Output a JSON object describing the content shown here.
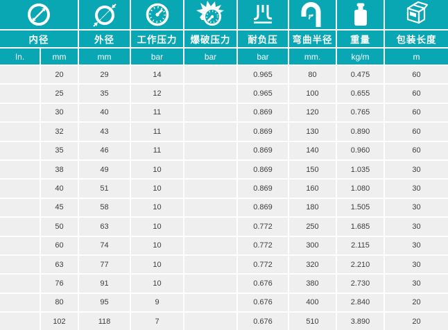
{
  "colors": {
    "header_teal": "#09a6b4",
    "row_background": "#efefef",
    "grid_lines": "#ffffff",
    "data_text": "#3c3c3c",
    "header_text": "#ffffff"
  },
  "header": {
    "columns": [
      {
        "label": "内径",
        "icon": "inner-diameter-icon"
      },
      {
        "label": "外径",
        "icon": "outer-diameter-icon"
      },
      {
        "label": "工作压力",
        "icon": "pressure-gauge-icon"
      },
      {
        "label": "爆破压力",
        "icon": "burst-gauge-icon"
      },
      {
        "label": "耐负压",
        "icon": "vacuum-icon"
      },
      {
        "label": "弯曲半径",
        "icon": "bend-radius-icon"
      },
      {
        "label": "重量",
        "icon": "weight-icon"
      },
      {
        "label": "包装长度",
        "icon": "package-icon"
      }
    ],
    "unit_row": [
      "In.",
      "mm",
      "mm",
      "bar",
      "bar",
      "bar",
      "mm.",
      "kg/m",
      "m"
    ]
  },
  "chart_data": {
    "type": "table",
    "columns": [
      "内径 In.",
      "内径 mm",
      "外径 mm",
      "工作压力 bar",
      "爆破压力 bar",
      "耐负压 bar",
      "弯曲半径 mm.",
      "重量 kg/m",
      "包装长度 m"
    ],
    "rows": [
      [
        "",
        "20",
        "29",
        "14",
        "",
        "0.965",
        "80",
        "0.475",
        "60"
      ],
      [
        "",
        "25",
        "35",
        "12",
        "",
        "0.965",
        "100",
        "0.655",
        "60"
      ],
      [
        "",
        "30",
        "40",
        "11",
        "",
        "0.869",
        "120",
        "0.765",
        "60"
      ],
      [
        "",
        "32",
        "43",
        "11",
        "",
        "0.869",
        "130",
        "0.890",
        "60"
      ],
      [
        "",
        "35",
        "46",
        "11",
        "",
        "0.869",
        "140",
        "0.960",
        "60"
      ],
      [
        "",
        "38",
        "49",
        "10",
        "",
        "0.869",
        "150",
        "1.035",
        "30"
      ],
      [
        "",
        "40",
        "51",
        "10",
        "",
        "0.869",
        "160",
        "1.080",
        "30"
      ],
      [
        "",
        "45",
        "58",
        "10",
        "",
        "0.869",
        "180",
        "1.505",
        "30"
      ],
      [
        "",
        "50",
        "63",
        "10",
        "",
        "0.772",
        "250",
        "1.685",
        "30"
      ],
      [
        "",
        "60",
        "74",
        "10",
        "",
        "0.772",
        "300",
        "2.115",
        "30"
      ],
      [
        "",
        "63",
        "77",
        "10",
        "",
        "0.772",
        "320",
        "2.210",
        "30"
      ],
      [
        "",
        "76",
        "91",
        "10",
        "",
        "0.676",
        "380",
        "2.730",
        "30"
      ],
      [
        "",
        "80",
        "95",
        "9",
        "",
        "0.676",
        "400",
        "2.840",
        "20"
      ],
      [
        "",
        "102",
        "118",
        "7",
        "",
        "0.676",
        "510",
        "3.890",
        "20"
      ]
    ]
  }
}
